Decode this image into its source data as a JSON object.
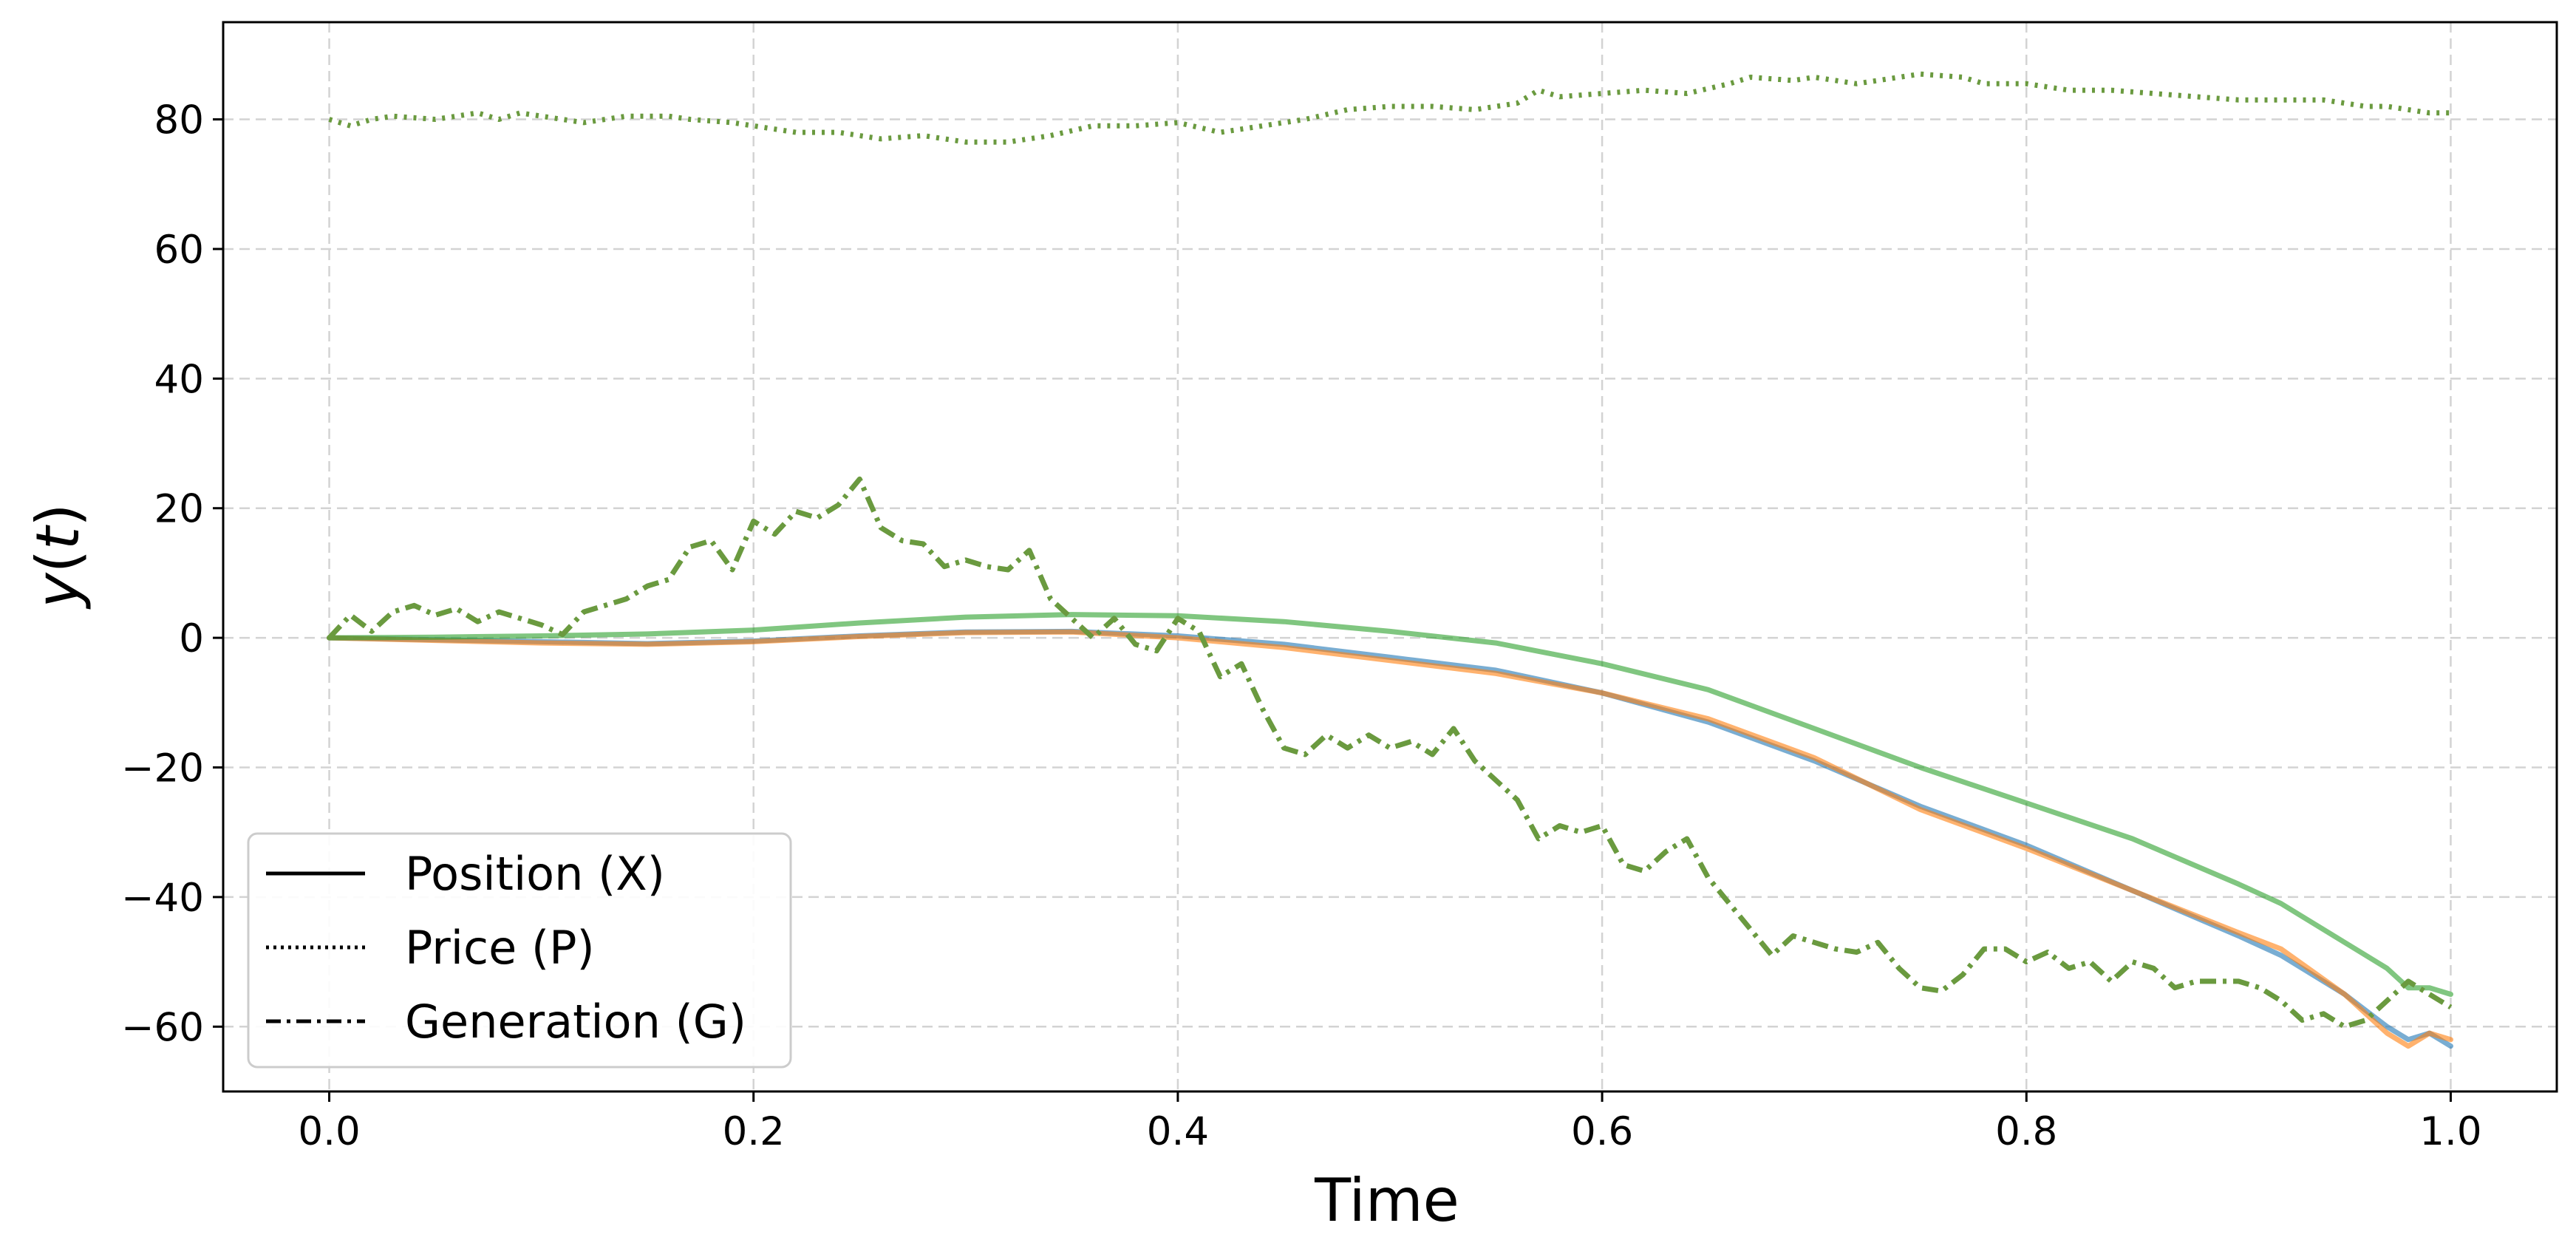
{
  "chart_data": {
    "type": "line",
    "xlabel": "Time",
    "ylabel_parts": [
      "y",
      "(",
      "t",
      ")"
    ],
    "xlim": [
      -0.05,
      1.05
    ],
    "ylim": [
      -70,
      95
    ],
    "xticks": [
      0.0,
      0.2,
      0.4,
      0.6,
      0.8,
      1.0
    ],
    "xtick_labels": [
      "0.0",
      "0.2",
      "0.4",
      "0.6",
      "0.8",
      "1.0"
    ],
    "yticks": [
      -60,
      -40,
      -20,
      0,
      20,
      40,
      60,
      80
    ],
    "ytick_labels": [
      "−60",
      "−40",
      "−20",
      "0",
      "20",
      "40",
      "60",
      "80"
    ],
    "grid": true,
    "legend_position": "lower-left",
    "legend": [
      {
        "label": "Position (X)",
        "style": "solid"
      },
      {
        "label": "Price (P)",
        "style": "dotted"
      },
      {
        "label": "Generation (G)",
        "style": "dashdot"
      }
    ],
    "colors": {
      "blue": "#1f77b4",
      "orange": "#ff7f0e",
      "green": "#2ca02c",
      "olive": "#6a9a3f",
      "grid": "#d3d3d3"
    },
    "series": [
      {
        "variable": "Position (X)",
        "color": "#1f77b4",
        "style": "solid",
        "x": [
          0.0,
          0.05,
          0.1,
          0.15,
          0.2,
          0.25,
          0.3,
          0.35,
          0.4,
          0.45,
          0.5,
          0.55,
          0.6,
          0.65,
          0.7,
          0.75,
          0.8,
          0.85,
          0.9,
          0.92,
          0.95,
          0.97,
          0.98,
          0.99,
          1.0
        ],
        "values": [
          0,
          -0.3,
          -0.6,
          -0.9,
          -0.5,
          0.3,
          0.9,
          1.0,
          0.3,
          -1.0,
          -3.0,
          -5.0,
          -8.5,
          -13.0,
          -19.0,
          -26.0,
          -32.0,
          -39.0,
          -46.0,
          -49.0,
          -55.0,
          -60.0,
          -62.0,
          -61.0,
          -63.0
        ]
      },
      {
        "variable": "Position (X)",
        "color": "#ff7f0e",
        "style": "solid",
        "x": [
          0.0,
          0.05,
          0.1,
          0.15,
          0.2,
          0.25,
          0.3,
          0.35,
          0.4,
          0.45,
          0.5,
          0.55,
          0.6,
          0.65,
          0.7,
          0.75,
          0.8,
          0.85,
          0.9,
          0.92,
          0.95,
          0.97,
          0.98,
          0.99,
          1.0
        ],
        "values": [
          0,
          -0.4,
          -0.8,
          -1.0,
          -0.6,
          0.2,
          0.8,
          0.9,
          0.0,
          -1.5,
          -3.5,
          -5.5,
          -8.5,
          -12.5,
          -18.5,
          -26.5,
          -32.5,
          -39.0,
          -45.5,
          -48.0,
          -55.0,
          -61.0,
          -63.0,
          -61.0,
          -62.0
        ]
      },
      {
        "variable": "Position (X)",
        "color": "#2ca02c",
        "style": "solid",
        "x": [
          0.0,
          0.05,
          0.1,
          0.15,
          0.2,
          0.25,
          0.3,
          0.35,
          0.4,
          0.45,
          0.5,
          0.55,
          0.6,
          0.65,
          0.7,
          0.75,
          0.8,
          0.85,
          0.9,
          0.92,
          0.95,
          0.97,
          0.98,
          0.99,
          1.0
        ],
        "values": [
          0,
          0.1,
          0.3,
          0.6,
          1.2,
          2.3,
          3.2,
          3.6,
          3.4,
          2.5,
          1.0,
          -0.8,
          -4.0,
          -8.0,
          -14.0,
          -20.0,
          -25.5,
          -31.0,
          -38.0,
          -41.0,
          -47.0,
          -51.0,
          -54.0,
          -54.0,
          -55.0
        ]
      },
      {
        "variable": "Price (P)",
        "color": "#6a9a3f",
        "style": "dotted",
        "x": [
          0.0,
          0.01,
          0.02,
          0.03,
          0.05,
          0.07,
          0.08,
          0.09,
          0.1,
          0.12,
          0.14,
          0.16,
          0.17,
          0.19,
          0.2,
          0.22,
          0.24,
          0.26,
          0.28,
          0.3,
          0.32,
          0.34,
          0.36,
          0.38,
          0.4,
          0.42,
          0.44,
          0.46,
          0.48,
          0.5,
          0.52,
          0.54,
          0.56,
          0.57,
          0.58,
          0.6,
          0.62,
          0.64,
          0.66,
          0.67,
          0.69,
          0.7,
          0.72,
          0.74,
          0.75,
          0.77,
          0.78,
          0.8,
          0.82,
          0.84,
          0.86,
          0.88,
          0.9,
          0.92,
          0.94,
          0.96,
          0.97,
          0.98,
          0.99,
          1.0
        ],
        "values": [
          80,
          79,
          80,
          80.5,
          80,
          81,
          80,
          81,
          80.5,
          79.5,
          80.5,
          80.5,
          80,
          79.5,
          79,
          78,
          78,
          77,
          77.5,
          76.5,
          76.5,
          77.5,
          79,
          79,
          79.5,
          78,
          79,
          80,
          81.5,
          82,
          82,
          81.5,
          82.5,
          84.5,
          83.5,
          84,
          84.5,
          84,
          85.5,
          86.5,
          86,
          86.5,
          85.5,
          86.5,
          87,
          86.5,
          85.5,
          85.5,
          84.5,
          84.5,
          84,
          83.5,
          83,
          83,
          83,
          82,
          82,
          81.5,
          81,
          81
        ]
      },
      {
        "variable": "Generation (G)",
        "color": "#6a9a3f",
        "style": "dashdot",
        "x": [
          0.0,
          0.01,
          0.02,
          0.03,
          0.04,
          0.05,
          0.06,
          0.07,
          0.08,
          0.09,
          0.1,
          0.11,
          0.12,
          0.13,
          0.14,
          0.15,
          0.16,
          0.17,
          0.18,
          0.19,
          0.2,
          0.21,
          0.22,
          0.23,
          0.24,
          0.25,
          0.26,
          0.27,
          0.28,
          0.29,
          0.3,
          0.31,
          0.32,
          0.33,
          0.34,
          0.35,
          0.36,
          0.37,
          0.38,
          0.39,
          0.4,
          0.41,
          0.42,
          0.43,
          0.44,
          0.45,
          0.46,
          0.47,
          0.48,
          0.49,
          0.5,
          0.51,
          0.52,
          0.53,
          0.54,
          0.55,
          0.56,
          0.57,
          0.58,
          0.59,
          0.6,
          0.61,
          0.62,
          0.63,
          0.64,
          0.65,
          0.66,
          0.67,
          0.68,
          0.69,
          0.7,
          0.71,
          0.72,
          0.73,
          0.74,
          0.75,
          0.76,
          0.77,
          0.78,
          0.79,
          0.8,
          0.81,
          0.82,
          0.83,
          0.84,
          0.85,
          0.86,
          0.87,
          0.88,
          0.89,
          0.9,
          0.91,
          0.92,
          0.93,
          0.94,
          0.95,
          0.96,
          0.97,
          0.98,
          0.99,
          1.0
        ],
        "values": [
          0,
          3.5,
          1,
          4,
          5,
          3.5,
          4.5,
          2.5,
          4,
          3,
          2,
          0.5,
          4,
          5,
          6,
          8,
          9,
          14,
          15,
          10.5,
          18,
          16,
          19.5,
          18.5,
          20.5,
          24.5,
          17,
          15,
          14.5,
          11,
          12,
          11,
          10.5,
          13.5,
          6,
          3,
          0,
          3,
          -1,
          -2,
          3,
          1,
          -6,
          -4,
          -11,
          -17,
          -18,
          -15,
          -17,
          -15,
          -17,
          -16,
          -18,
          -14,
          -19,
          -22,
          -25,
          -31,
          -29,
          -30,
          -29,
          -35,
          -36,
          -33,
          -31,
          -37,
          -41,
          -45,
          -49,
          -46,
          -47,
          -48,
          -48.5,
          -47,
          -51,
          -54,
          -54.5,
          -52,
          -48,
          -48,
          -50,
          -48.5,
          -51,
          -50,
          -53,
          -50,
          -51,
          -54,
          -53,
          -53,
          -53,
          -54,
          -56,
          -59,
          -58,
          -60,
          -59,
          -56,
          -53,
          -55,
          -57
        ]
      }
    ]
  }
}
